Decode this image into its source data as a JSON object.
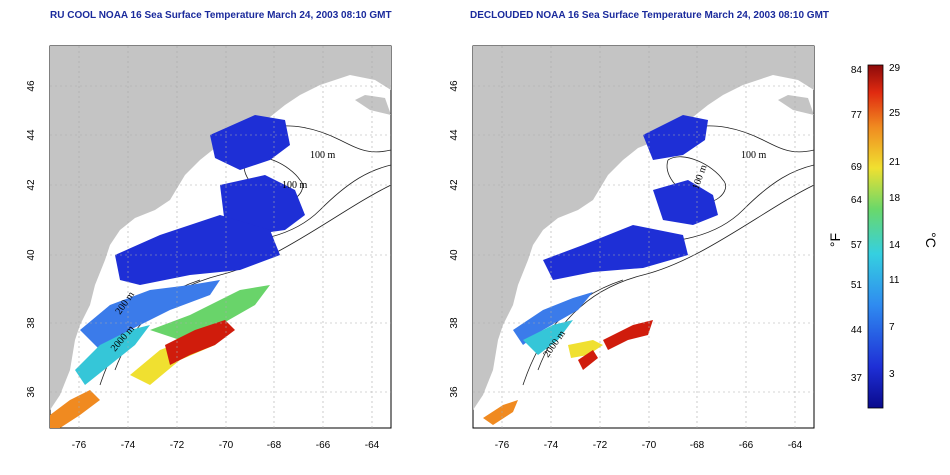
{
  "maps": [
    {
      "title": "RU COOL NOAA 16 Sea Surface Temperature March 24, 2003 08:10 GMT",
      "contour_labels": [
        "100 m",
        "100 m",
        "2000 m",
        "200 m"
      ]
    },
    {
      "title": "DECLOUDED NOAA 16 Sea Surface Temperature March 24, 2003 08:10 GMT",
      "contour_labels": [
        "100 m",
        "100 m",
        "2000 m"
      ]
    }
  ],
  "lat_ticks": [
    "46",
    "44",
    "42",
    "40",
    "38",
    "36"
  ],
  "lon_ticks": [
    "-76",
    "-74",
    "-72",
    "-70",
    "-68",
    "-66",
    "-64"
  ],
  "colorbar": {
    "left_unit": "°F",
    "right_unit": "°C",
    "f_ticks": [
      "84",
      "77",
      "69",
      "64",
      "57",
      "51",
      "44",
      "37"
    ],
    "c_ticks": [
      "29",
      "25",
      "21",
      "18",
      "14",
      "11",
      "7",
      "3"
    ]
  },
  "colors": {
    "land": "#c4c4c4",
    "title": "#1a2a9c",
    "cold": "#1e2fd6",
    "warm": "#d01c0c"
  }
}
